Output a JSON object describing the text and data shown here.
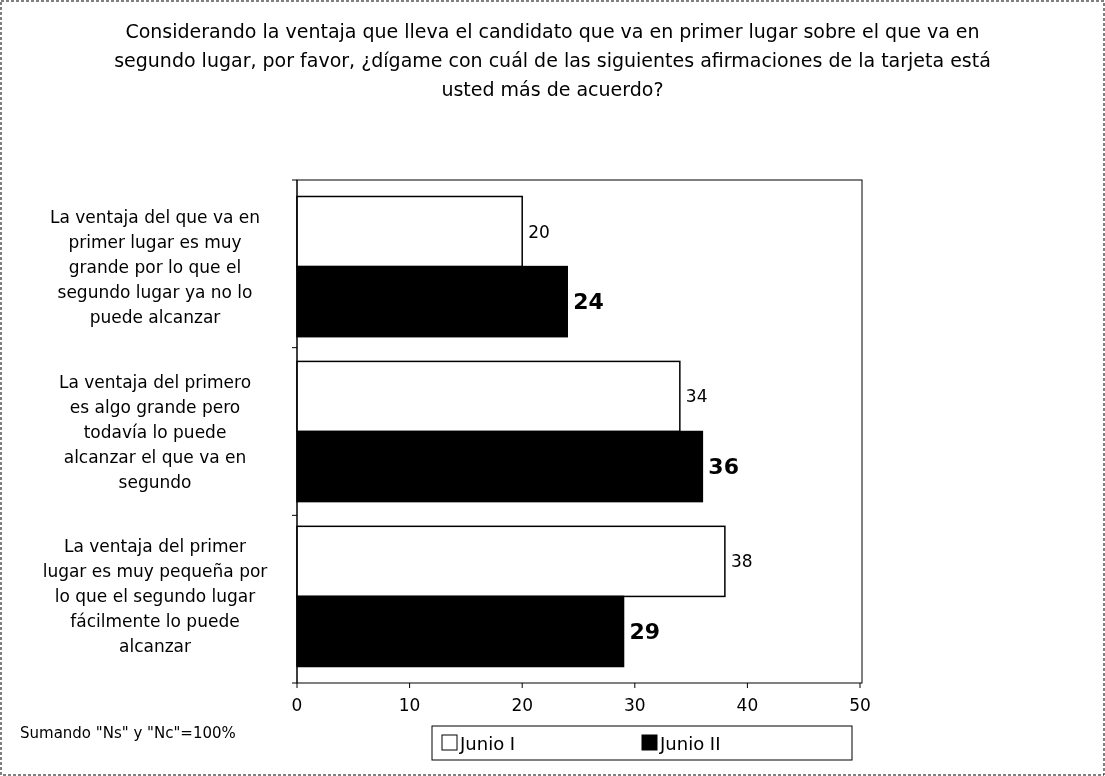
{
  "chart_data": {
    "type": "bar",
    "orientation": "horizontal",
    "title": "Considerando la ventaja que lleva el candidato que va en primer lugar sobre el que va en segundo lugar, por favor, ¿dígame con cuál de las siguientes afirmaciones de la tarjeta está usted más de acuerdo?",
    "categories": [
      "La ventaja del que va en primer lugar es muy grande por lo que el segundo lugar ya no lo puede alcanzar",
      "La ventaja del primero es algo grande pero todavía lo puede alcanzar el que va en segundo",
      "La ventaja del primer lugar es muy pequeña por lo que el segundo lugar fácilmente lo puede alcanzar"
    ],
    "series": [
      {
        "name": "Junio I",
        "color": "#ffffff",
        "values": [
          20,
          34,
          38
        ]
      },
      {
        "name": "Junio II",
        "color": "#000000",
        "values": [
          24,
          36,
          29
        ]
      }
    ],
    "xlim": [
      0,
      50
    ],
    "xticks": [
      0,
      10,
      20,
      30,
      40,
      50
    ],
    "data_labels": true,
    "legend": "bottom",
    "annotations": [
      "Sumando \"Ns\" y \"Nc\"=100%"
    ]
  }
}
